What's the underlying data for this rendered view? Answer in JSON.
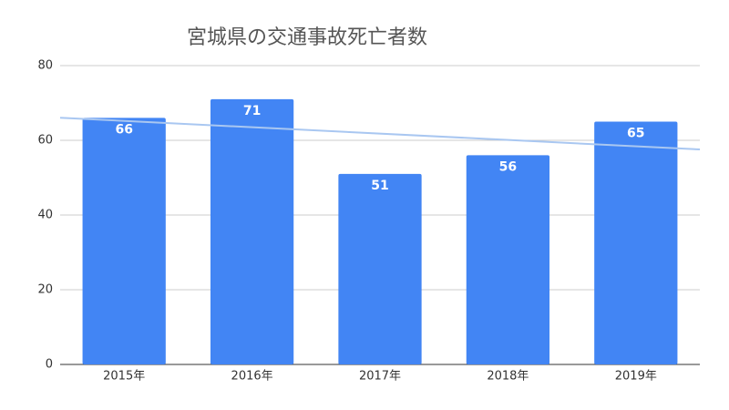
{
  "chart_data": {
    "type": "bar",
    "title": "宮城県の交通事故死亡者数",
    "categories": [
      "2015年",
      "2016年",
      "2017年",
      "2018年",
      "2019年"
    ],
    "values": [
      66,
      71,
      51,
      56,
      65
    ],
    "color": "#4285f4",
    "ylim": [
      0,
      80
    ],
    "yticks": [
      0,
      20,
      40,
      60,
      80
    ],
    "grid": true,
    "trendline": true,
    "trendline_color": "#a9c7f1"
  }
}
